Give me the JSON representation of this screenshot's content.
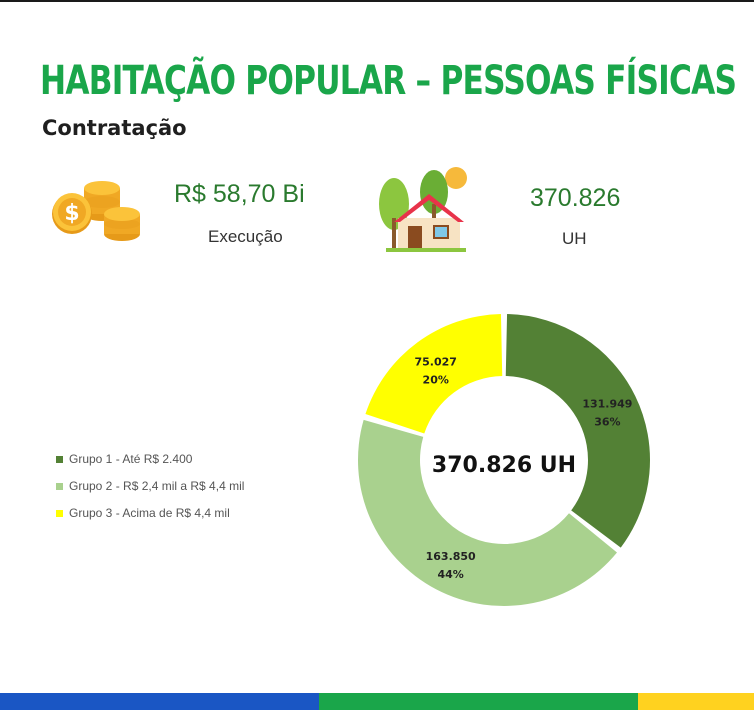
{
  "header": {
    "title": "HABITAÇÃO POPULAR – PESSOAS FÍSICAS",
    "subtitle": "Contratação"
  },
  "kpis": [
    {
      "value": "R$ 58,70 Bi",
      "label": "Execução",
      "icon": "coins-icon"
    },
    {
      "value": "370.826",
      "label": "UH",
      "icon": "house-icon"
    }
  ],
  "colors": {
    "title": "#1aa64a",
    "kpi_value": "#2a7a2e",
    "grupo1": "#538135",
    "grupo2": "#a9d18e",
    "grupo3": "#ffff00",
    "bar_blue": "#1a56c4",
    "bar_green": "#1aa64a",
    "bar_yellow": "#ffd21f"
  },
  "chart_data": {
    "type": "pie",
    "donut": true,
    "center_label": "370.826 UH",
    "legend_position": "left",
    "series": [
      {
        "name": "Grupo 1 - Até R$ 2.400",
        "value": 131949,
        "value_label": "131.949",
        "percent_label": "36%"
      },
      {
        "name": "Grupo 2 - R$ 2,4 mil a R$ 4,4 mil",
        "value": 163850,
        "value_label": "163.850",
        "percent_label": "44%"
      },
      {
        "name": "Grupo 3 - Acima de R$ 4,4 mil",
        "value": 75027,
        "value_label": "75.027",
        "percent_label": "20%"
      }
    ]
  }
}
